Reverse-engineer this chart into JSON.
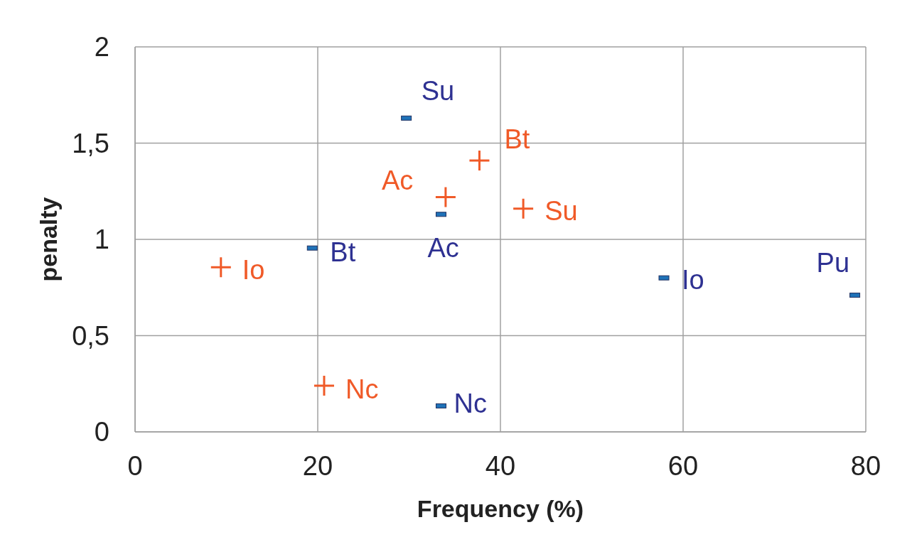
{
  "chart_data": {
    "type": "scatter",
    "xlabel": "Frequency (%)",
    "ylabel": "penalty",
    "xlim": [
      0,
      80
    ],
    "xticks": [
      0,
      20,
      40,
      60,
      80
    ],
    "ylim": [
      0,
      2
    ],
    "yticks": [
      0,
      {
        "value": 0.5,
        "label": "0,5"
      },
      1,
      {
        "value": 1.5,
        "label": "1,5"
      },
      2
    ],
    "grid": true,
    "legend": false,
    "series": [
      {
        "color": "#f05a28",
        "marker": "cross",
        "x": [
          37.7,
          34.0,
          42.5,
          9.4,
          20.7
        ],
        "values": [
          1.41,
          1.22,
          1.16,
          0.855,
          0.24
        ]
      },
      {
        "color": "#1f72b8",
        "marker": "square",
        "x": [
          29.7,
          33.5,
          19.4,
          57.9,
          78.8,
          33.5
        ],
        "values": [
          1.63,
          1.13,
          0.955,
          0.8,
          0.71,
          0.135
        ]
      }
    ],
    "annotations": [
      {
        "text": "Bt",
        "x": 37.7,
        "y": 1.41
      },
      {
        "text": "Ac",
        "x": 34.0,
        "y": 1.22
      },
      {
        "text": "Su",
        "x": 42.5,
        "y": 1.16
      },
      {
        "text": "Io",
        "x": 9.4,
        "y": 0.855
      },
      {
        "text": "Nc",
        "x": 20.7,
        "y": 0.24
      },
      {
        "text": "Su",
        "x": 29.7,
        "y": 1.63
      },
      {
        "text": "Ac",
        "x": 33.5,
        "y": 1.13
      },
      {
        "text": "Bt",
        "x": 19.4,
        "y": 0.955
      },
      {
        "text": "Io",
        "x": 57.9,
        "y": 0.8
      },
      {
        "text": "Pu",
        "x": 78.8,
        "y": 0.71
      },
      {
        "text": "Nc",
        "x": 33.5,
        "y": 0.135
      }
    ]
  }
}
